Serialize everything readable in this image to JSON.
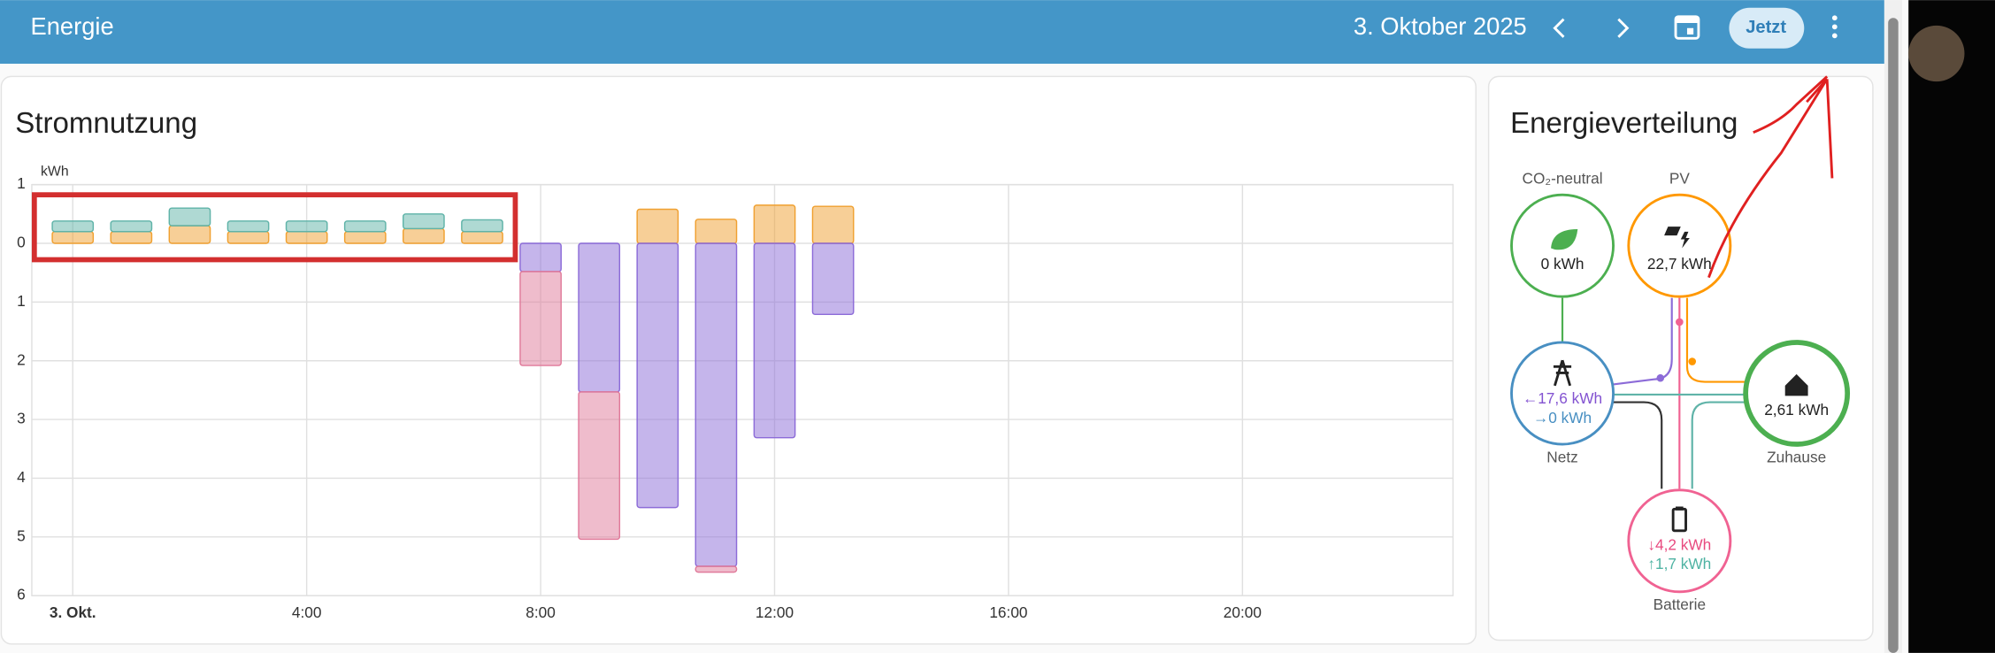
{
  "header": {
    "title": "Energie",
    "date": "3. Oktober 2025",
    "now_button": "Jetzt"
  },
  "chart_data": {
    "type": "bar",
    "stacked": true,
    "title": "Stromnutzung",
    "y_label": "kWh",
    "x": [
      0,
      1,
      2,
      3,
      4,
      5,
      6,
      7,
      8,
      9,
      10,
      11,
      12,
      13
    ],
    "series": [
      {
        "color": "#f0a030",
        "values": [
          0.2,
          0.2,
          0.3,
          0.2,
          0.2,
          0.2,
          0.25,
          0.2,
          null,
          null,
          0.58,
          0.41,
          0.65,
          0.63
        ]
      },
      {
        "color": "#5fb3a8",
        "values": [
          0.18,
          0.18,
          0.3,
          0.18,
          0.18,
          0.18,
          0.25,
          0.2,
          null,
          null,
          null,
          null,
          null,
          null
        ]
      },
      {
        "color": "#8c6bd8",
        "values": [
          null,
          null,
          null,
          null,
          null,
          null,
          null,
          null,
          -0.48,
          -2.53,
          -4.5,
          -5.5,
          -3.31,
          -1.21
        ]
      },
      {
        "color": "#e07a9a",
        "values": [
          null,
          null,
          null,
          null,
          null,
          null,
          null,
          null,
          -1.6,
          -2.51,
          null,
          -0.1,
          null,
          null
        ]
      }
    ],
    "xlim": [
      -0.7,
      23.6
    ],
    "xticks": [
      {
        "value": 0,
        "label": "3. Okt."
      },
      {
        "value": 4,
        "label": "4:00"
      },
      {
        "value": 8,
        "label": "8:00"
      },
      {
        "value": 12,
        "label": "12:00"
      },
      {
        "value": 16,
        "label": "16:00"
      },
      {
        "value": 20,
        "label": "20:00"
      }
    ],
    "ylim": [
      -6,
      1
    ],
    "yticks": [
      1,
      0,
      {
        "value": -1,
        "label": "1"
      },
      {
        "value": -2,
        "label": "2"
      },
      {
        "value": -3,
        "label": "3"
      },
      {
        "value": -4,
        "label": "4"
      },
      {
        "value": -5,
        "label": "5"
      },
      {
        "value": -6,
        "label": "6"
      }
    ],
    "grid": true
  },
  "energy_distribution": {
    "title": "Energieverteilung",
    "nodes": [
      {
        "label": "CO₂-neutral",
        "values": [
          "0 kWh"
        ]
      },
      {
        "label": "PV",
        "values": [
          "22,7 kWh"
        ]
      },
      {
        "label": "Netz",
        "values": [
          "←17,6 kWh",
          "→0 kWh"
        ]
      },
      {
        "label": "Zuhause",
        "values": [
          "2,61 kWh"
        ]
      },
      {
        "label": "Batterie",
        "values": [
          "↓4,2 kWh",
          "↑1,7 kWh"
        ]
      }
    ]
  }
}
